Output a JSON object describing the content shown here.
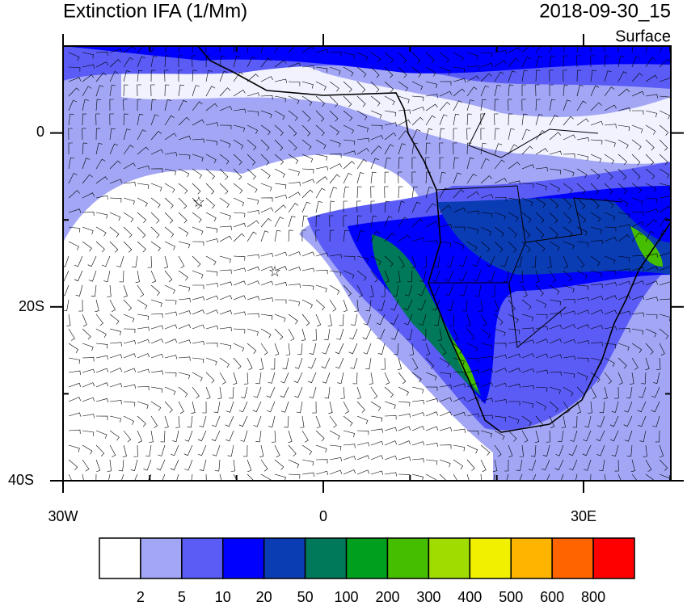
{
  "header": {
    "title": "Extinction IFA (1/Mm)",
    "date": "2018-09-30_15",
    "level": "Surface"
  },
  "map": {
    "y_labels": [
      "0",
      "20S",
      "40S"
    ],
    "x_labels": [
      "30W",
      "0",
      "30E"
    ]
  },
  "colorbar": {
    "colors": [
      "#ffffff",
      "#a3a6f5",
      "#5a5cf5",
      "#0000ff",
      "#0a3cb4",
      "#00785a",
      "#00a01e",
      "#46be00",
      "#a0dc00",
      "#f0f000",
      "#ffb400",
      "#ff6400",
      "#ff0000"
    ],
    "labels": [
      2,
      5,
      10,
      20,
      50,
      100,
      200,
      300,
      400,
      500,
      600,
      800
    ]
  }
}
